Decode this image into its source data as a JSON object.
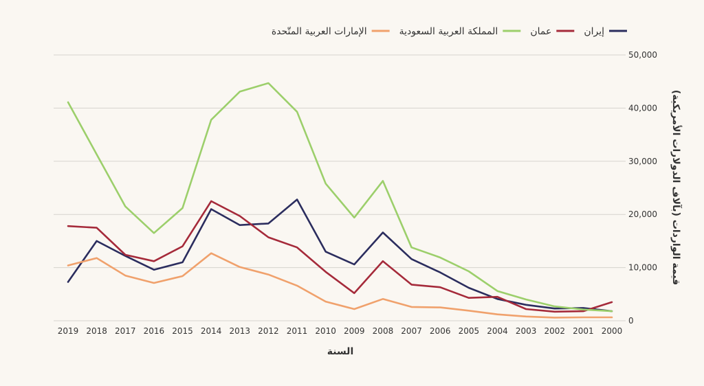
{
  "chart_data": {
    "type": "line",
    "x": [
      2019,
      2018,
      2017,
      2016,
      2015,
      2014,
      2013,
      2012,
      2011,
      2010,
      2009,
      2008,
      2007,
      2006,
      2005,
      2004,
      2003,
      2002,
      2001,
      2000
    ],
    "xlabel": "السنة",
    "ylabel": "قيمة الواردات (بآلاف الدولارات الأمريكية)",
    "ylim": [
      0,
      50000
    ],
    "yticks": [
      0,
      10000,
      20000,
      30000,
      40000,
      50000
    ],
    "ytick_labels": [
      "0",
      "10,000",
      "20,000",
      "30,000",
      "40,000",
      "50,000"
    ],
    "grid": true,
    "legend_position": "top",
    "series": [
      {
        "name": "إيران",
        "color": "#2b2d5e",
        "values": [
          7300,
          15000,
          12200,
          9600,
          11000,
          21000,
          18000,
          18300,
          22800,
          13000,
          10600,
          16600,
          11600,
          9100,
          6200,
          4100,
          3000,
          2300,
          2400,
          1800
        ]
      },
      {
        "name": "عمان",
        "color": "#a52a3a",
        "values": [
          17800,
          17500,
          12400,
          11200,
          14000,
          22500,
          19700,
          15700,
          13800,
          9200,
          5200,
          11200,
          6800,
          6300,
          4300,
          4500,
          2200,
          1700,
          1800,
          3500
        ]
      },
      {
        "name": "المملكة العربية السعودية",
        "color": "#9ccf6b",
        "values": [
          41100,
          31300,
          21500,
          16500,
          21200,
          37800,
          43100,
          44700,
          39300,
          25800,
          19400,
          26300,
          13800,
          11900,
          9300,
          5600,
          4000,
          2700,
          2100,
          1800
        ]
      },
      {
        "name": "الإمارات العربية المتّحدة",
        "color": "#f0a16c",
        "values": [
          10400,
          11800,
          8500,
          7100,
          8400,
          12700,
          10100,
          8700,
          6600,
          3600,
          2200,
          4100,
          2600,
          2500,
          1900,
          1200,
          800,
          600,
          650,
          650
        ]
      }
    ]
  }
}
